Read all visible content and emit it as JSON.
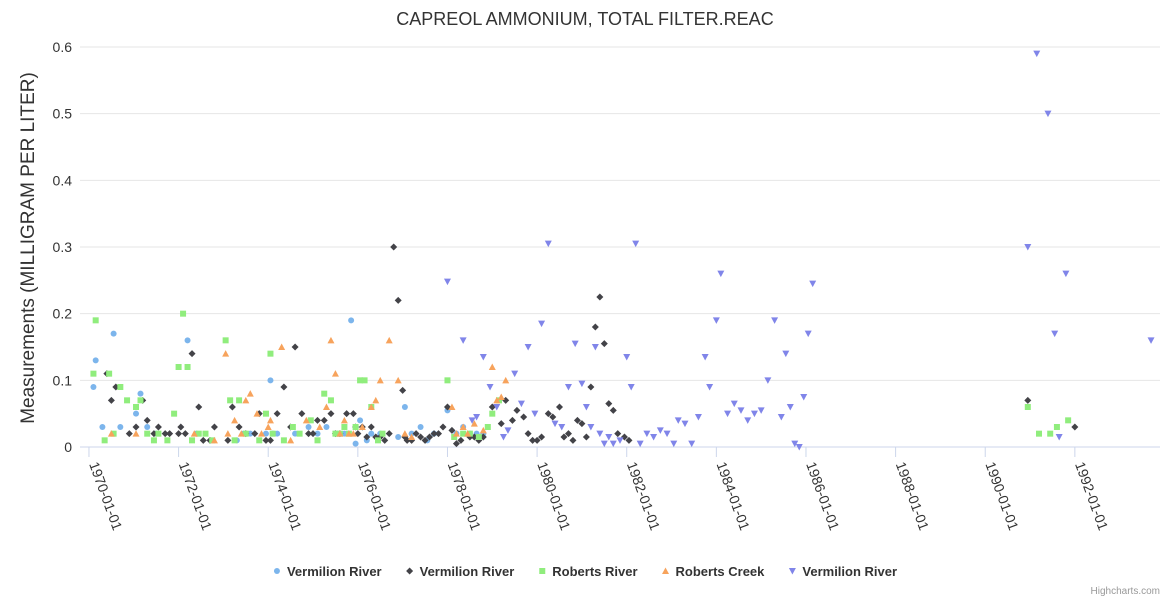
{
  "chart_data": {
    "type": "scatter",
    "title": "CAPREOL AMMONIUM, TOTAL FILTER.REAC",
    "ylabel": "Measurements (MILLIGRAM PER LITER)",
    "xlabel": "",
    "ylim": [
      0,
      0.6
    ],
    "yticks": [
      0,
      0.1,
      0.2,
      0.3,
      0.4,
      0.5,
      0.6
    ],
    "ytick_labels": [
      "0",
      "0.1",
      "0.2",
      "0.3",
      "0.4",
      "0.5",
      "0.6"
    ],
    "xlim": [
      1969.8,
      1993.9
    ],
    "xticks": [
      1970,
      1972,
      1974,
      1976,
      1978,
      1980,
      1982,
      1984,
      1986,
      1988,
      1990,
      1992
    ],
    "xtick_labels": [
      "1970-01-01",
      "1972-01-01",
      "1974-01-01",
      "1976-01-01",
      "1978-01-01",
      "1980-01-01",
      "1982-01-01",
      "1984-01-01",
      "1986-01-01",
      "1988-01-01",
      "1990-01-01",
      "1992-01-01"
    ],
    "grid": "horizontal",
    "legend_position": "bottom-center",
    "series": [
      {
        "name": "Vermilion River",
        "color": "#7cb5ec",
        "marker": "circle",
        "x": [
          1970.1,
          1970.15,
          1970.3,
          1970.55,
          1970.7,
          1971.05,
          1971.15,
          1971.3,
          1971.5,
          1972.2,
          1972.4,
          1973.3,
          1973.45,
          1973.6,
          1973.95,
          1974.05,
          1974.1,
          1974.2,
          1974.6,
          1974.9,
          1975.1,
          1975.3,
          1975.5,
          1975.7,
          1975.85,
          1975.95,
          1976.05,
          1976.2,
          1976.3,
          1976.5,
          1976.9,
          1977.05,
          1977.2,
          1977.4,
          1977.55,
          1977.7,
          1978.0,
          1978.2,
          1978.35,
          1978.5,
          1978.65,
          1978.8
        ],
        "y": [
          0.09,
          0.13,
          0.03,
          0.17,
          0.03,
          0.05,
          0.08,
          0.03,
          0.02,
          0.16,
          0.02,
          0.01,
          0.02,
          0.02,
          0.02,
          0.1,
          0.02,
          0.02,
          0.02,
          0.03,
          0.02,
          0.03,
          0.02,
          0.02,
          0.19,
          0.005,
          0.04,
          0.01,
          0.02,
          0.02,
          0.015,
          0.06,
          0.02,
          0.03,
          0.01,
          0.02,
          0.055,
          0.02,
          0.03,
          0.02,
          0.02,
          0.02
        ]
      },
      {
        "name": "Vermilion River",
        "color": "#434348",
        "marker": "diamond",
        "x": [
          1970.4,
          1970.5,
          1970.6,
          1970.9,
          1971.05,
          1971.2,
          1971.3,
          1971.45,
          1971.55,
          1971.7,
          1971.8,
          1972.0,
          1972.05,
          1972.15,
          1972.3,
          1972.45,
          1972.55,
          1972.7,
          1972.8,
          1973.1,
          1973.2,
          1973.35,
          1973.5,
          1973.7,
          1973.8,
          1973.95,
          1974.05,
          1974.2,
          1974.35,
          1974.5,
          1974.6,
          1974.75,
          1974.9,
          1975.0,
          1975.1,
          1975.25,
          1975.4,
          1975.5,
          1975.6,
          1975.75,
          1975.9,
          1975.95,
          1976.0,
          1976.1,
          1976.2,
          1976.3,
          1976.4,
          1976.5,
          1976.6,
          1976.7,
          1976.8,
          1976.9,
          1977.0,
          1977.05,
          1977.1,
          1977.2,
          1977.3,
          1977.4,
          1977.5,
          1977.6,
          1977.7,
          1977.8,
          1977.9,
          1978.0,
          1978.1,
          1978.2,
          1978.3,
          1978.5,
          1978.6,
          1978.7,
          1978.8,
          1979.0,
          1979.2,
          1979.3,
          1979.45,
          1979.55,
          1979.7,
          1979.8,
          1979.9,
          1980.0,
          1980.1,
          1980.25,
          1980.35,
          1980.5,
          1980.6,
          1980.7,
          1980.8,
          1980.9,
          1981.0,
          1981.1,
          1981.2,
          1981.3,
          1981.4,
          1981.5,
          1981.6,
          1981.7,
          1981.8,
          1981.95,
          1982.05,
          1990.95,
          1992.0
        ],
        "y": [
          0.11,
          0.07,
          0.09,
          0.02,
          0.03,
          0.07,
          0.04,
          0.02,
          0.03,
          0.02,
          0.02,
          0.02,
          0.03,
          0.02,
          0.14,
          0.06,
          0.01,
          0.01,
          0.03,
          0.01,
          0.06,
          0.03,
          0.02,
          0.02,
          0.05,
          0.01,
          0.01,
          0.05,
          0.09,
          0.03,
          0.15,
          0.05,
          0.02,
          0.02,
          0.04,
          0.04,
          0.05,
          0.02,
          0.02,
          0.05,
          0.05,
          0.03,
          0.02,
          0.03,
          0.015,
          0.03,
          0.015,
          0.015,
          0.01,
          0.02,
          0.3,
          0.22,
          0.085,
          0.015,
          0.01,
          0.01,
          0.02,
          0.015,
          0.01,
          0.015,
          0.02,
          0.02,
          0.03,
          0.06,
          0.025,
          0.005,
          0.01,
          0.015,
          0.015,
          0.01,
          0.015,
          0.06,
          0.035,
          0.07,
          0.04,
          0.055,
          0.045,
          0.02,
          0.01,
          0.01,
          0.015,
          0.05,
          0.045,
          0.06,
          0.015,
          0.02,
          0.01,
          0.04,
          0.035,
          0.015,
          0.09,
          0.18,
          0.225,
          0.155,
          0.065,
          0.055,
          0.02,
          0.015,
          0.01,
          0.07,
          0.03
        ]
      },
      {
        "name": "Roberts River",
        "color": "#90ed7d",
        "marker": "square",
        "x": [
          1970.1,
          1970.15,
          1970.35,
          1970.45,
          1970.55,
          1970.7,
          1970.85,
          1971.05,
          1971.15,
          1971.3,
          1971.45,
          1971.55,
          1971.75,
          1971.9,
          1972.0,
          1972.1,
          1972.2,
          1972.3,
          1972.45,
          1972.6,
          1972.75,
          1973.05,
          1973.15,
          1973.25,
          1973.35,
          1973.5,
          1973.8,
          1973.95,
          1974.05,
          1974.1,
          1974.35,
          1974.55,
          1974.7,
          1974.95,
          1975.1,
          1975.25,
          1975.4,
          1975.5,
          1975.6,
          1975.7,
          1975.8,
          1975.95,
          1976.05,
          1976.15,
          1976.3,
          1976.45,
          1976.55,
          1978.0,
          1978.15,
          1978.35,
          1978.5,
          1978.7,
          1978.9,
          1979.0,
          1979.15,
          1990.95,
          1991.2,
          1991.45,
          1991.6,
          1991.85
        ],
        "y": [
          0.11,
          0.19,
          0.01,
          0.11,
          0.02,
          0.09,
          0.07,
          0.06,
          0.07,
          0.02,
          0.01,
          0.02,
          0.01,
          0.05,
          0.12,
          0.2,
          0.12,
          0.01,
          0.02,
          0.02,
          0.01,
          0.16,
          0.07,
          0.01,
          0.07,
          0.02,
          0.01,
          0.05,
          0.14,
          0.02,
          0.01,
          0.03,
          0.02,
          0.04,
          0.01,
          0.08,
          0.07,
          0.02,
          0.02,
          0.03,
          0.02,
          0.03,
          0.1,
          0.1,
          0.06,
          0.01,
          0.02,
          0.1,
          0.015,
          0.02,
          0.02,
          0.015,
          0.03,
          0.05,
          0.07,
          0.06,
          0.02,
          0.02,
          0.03,
          0.04
        ]
      },
      {
        "name": "Roberts Creek",
        "color": "#f7a35c",
        "marker": "triangle",
        "x": [
          1970.5,
          1971.05,
          1972.35,
          1972.8,
          1973.05,
          1973.1,
          1973.25,
          1973.4,
          1973.5,
          1973.6,
          1973.75,
          1973.85,
          1974.0,
          1974.05,
          1974.3,
          1974.5,
          1974.85,
          1975.15,
          1975.3,
          1975.4,
          1975.5,
          1975.6,
          1975.7,
          1975.8,
          1975.9,
          1976.1,
          1976.3,
          1976.4,
          1976.5,
          1976.7,
          1976.9,
          1977.05,
          1977.2,
          1978.1,
          1978.2,
          1978.35,
          1978.45,
          1978.6,
          1978.8,
          1979.0,
          1979.1,
          1979.2,
          1979.3
        ],
        "y": [
          0.02,
          0.02,
          0.02,
          0.01,
          0.14,
          0.02,
          0.04,
          0.02,
          0.07,
          0.08,
          0.05,
          0.02,
          0.03,
          0.04,
          0.15,
          0.01,
          0.04,
          0.03,
          0.06,
          0.16,
          0.11,
          0.02,
          0.04,
          0.02,
          0.02,
          0.03,
          0.06,
          0.07,
          0.1,
          0.16,
          0.1,
          0.02,
          0.015,
          0.06,
          0.02,
          0.03,
          0.02,
          0.035,
          0.025,
          0.12,
          0.07,
          0.075,
          0.1
        ]
      },
      {
        "name": "Vermilion River",
        "color": "#8085e9",
        "marker": "triangle-down",
        "x": [
          1978.0,
          1978.35,
          1978.55,
          1978.65,
          1978.8,
          1978.95,
          1979.1,
          1979.25,
          1979.35,
          1979.5,
          1979.65,
          1979.8,
          1979.95,
          1980.1,
          1980.25,
          1980.4,
          1980.55,
          1980.7,
          1980.85,
          1981.0,
          1981.1,
          1981.2,
          1981.3,
          1981.4,
          1981.5,
          1981.6,
          1981.7,
          1981.85,
          1982.0,
          1982.1,
          1982.2,
          1982.3,
          1982.45,
          1982.6,
          1982.75,
          1982.9,
          1983.05,
          1983.15,
          1983.3,
          1983.45,
          1983.6,
          1983.75,
          1983.85,
          1984.0,
          1984.1,
          1984.25,
          1984.4,
          1984.55,
          1984.7,
          1984.85,
          1985.0,
          1985.15,
          1985.3,
          1985.45,
          1985.55,
          1985.65,
          1985.75,
          1985.85,
          1985.95,
          1986.05,
          1986.15,
          1990.95,
          1991.15,
          1991.4,
          1991.55,
          1991.65,
          1991.8,
          1993.7
        ],
        "y": [
          0.248,
          0.16,
          0.04,
          0.045,
          0.135,
          0.09,
          0.06,
          0.015,
          0.025,
          0.11,
          0.065,
          0.15,
          0.05,
          0.185,
          0.305,
          0.035,
          0.03,
          0.09,
          0.155,
          0.095,
          0.06,
          0.03,
          0.15,
          0.02,
          0.005,
          0.015,
          0.005,
          0.01,
          0.135,
          0.09,
          0.305,
          0.005,
          0.02,
          0.015,
          0.025,
          0.02,
          0.005,
          0.04,
          0.035,
          0.005,
          0.045,
          0.135,
          0.09,
          0.19,
          0.26,
          0.05,
          0.065,
          0.055,
          0.04,
          0.05,
          0.055,
          0.1,
          0.19,
          0.045,
          0.14,
          0.06,
          0.005,
          0.0,
          0.075,
          0.17,
          0.245,
          0.3,
          0.59,
          0.5,
          0.17,
          0.015,
          0.26,
          0.16
        ]
      }
    ]
  },
  "credits": "Highcharts.com"
}
